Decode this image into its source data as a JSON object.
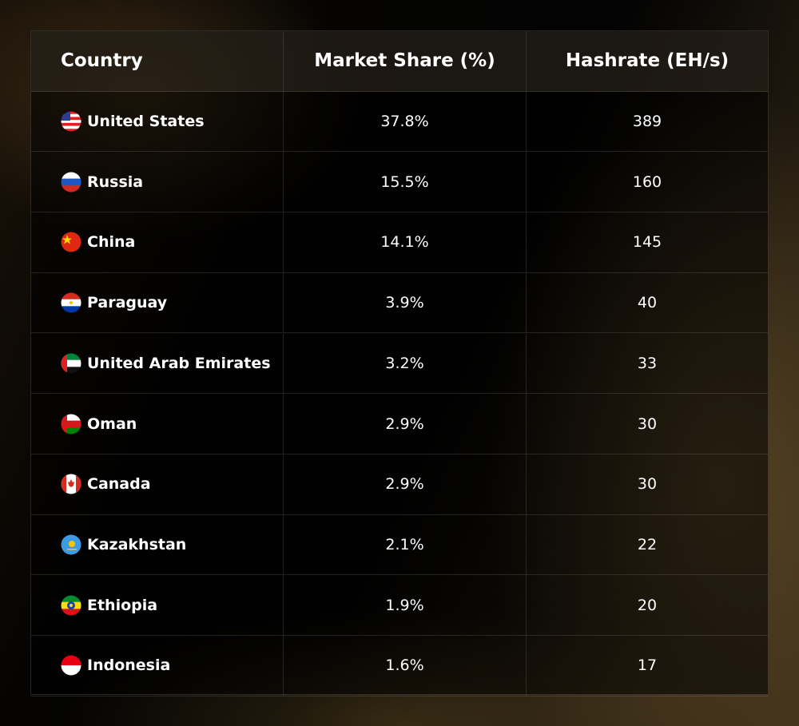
{
  "table": {
    "header": [
      "Country",
      "Market Share (%)",
      "Hashrate (EH/s)"
    ],
    "rows": [
      [
        "United States",
        "37.8%",
        "389"
      ],
      [
        "Russia",
        "15.5%",
        "160"
      ],
      [
        "China",
        "14.1%",
        "145"
      ],
      [
        "Paraguay",
        "3.9%",
        "40"
      ],
      [
        "United Arab Emirates",
        "3.2%",
        "33"
      ],
      [
        "Oman",
        "2.9%",
        "30"
      ],
      [
        "Canada",
        "2.9%",
        "30"
      ],
      [
        "Kazakhstan",
        "2.1%",
        "22"
      ],
      [
        "Ethiopia",
        "1.9%",
        "20"
      ],
      [
        "Indonesia",
        "1.6%",
        "17"
      ]
    ]
  }
}
